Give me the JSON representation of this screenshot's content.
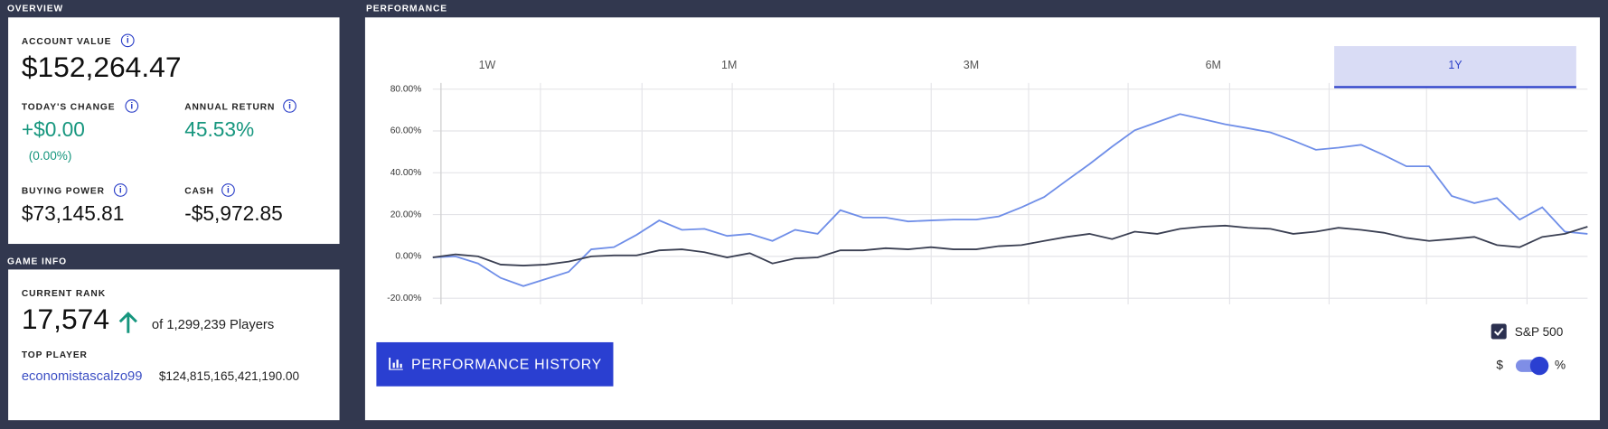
{
  "sections": {
    "overview": "OVERVIEW",
    "performance": "PERFORMANCE",
    "game_info": "GAME INFO"
  },
  "overview": {
    "account_value": {
      "label": "ACCOUNT VALUE",
      "value": "$152,264.47"
    },
    "todays_change": {
      "label": "TODAY'S CHANGE",
      "value": "+$0.00",
      "percent": "(0.00%)"
    },
    "annual_return": {
      "label": "ANNUAL RETURN",
      "value": "45.53%"
    },
    "buying_power": {
      "label": "BUYING POWER",
      "value": "$73,145.81"
    },
    "cash": {
      "label": "CASH",
      "value": "-$5,972.85"
    }
  },
  "game_info": {
    "current_rank": {
      "label": "CURRENT RANK",
      "value": "17,574",
      "of": "of 1,299,239 Players"
    },
    "top_player": {
      "label": "TOP PLAYER",
      "name": "economistascalzo99",
      "value": "$124,815,165,421,190.00"
    }
  },
  "performance": {
    "tabs": [
      "1W",
      "1M",
      "3M",
      "6M",
      "1Y"
    ],
    "selected_tab": "1Y",
    "button": "PERFORMANCE HISTORY",
    "toggle": {
      "left": "$",
      "right": "%"
    },
    "chart_data": {
      "type": "line",
      "ylim": [
        -20,
        80
      ],
      "yticks": [
        {
          "value": 80,
          "label": "80.00%"
        },
        {
          "value": 60,
          "label": "60.00%"
        },
        {
          "value": 40,
          "label": "40.00%"
        },
        {
          "value": 20,
          "label": "20.00%"
        },
        {
          "value": 0,
          "label": "0.00%"
        },
        {
          "value": -20,
          "label": "-20.00%"
        }
      ],
      "grid": true,
      "series": [
        {
          "color": "#6f8ee8",
          "values": [
            -0.5,
            0,
            -3.4,
            -10.3,
            -14.2,
            -10.8,
            -7.4,
            3.4,
            4.4,
            10.3,
            17.2,
            12.7,
            13.2,
            9.8,
            10.8,
            7.4,
            12.7,
            10.8,
            22.1,
            18.6,
            18.6,
            16.7,
            17.2,
            17.6,
            17.6,
            19.1,
            23.5,
            28.4,
            36.3,
            44.1,
            52.5,
            60.3,
            64.2,
            68.1,
            65.7,
            63.2,
            61.3,
            59.3,
            55.4,
            51,
            52,
            53.4,
            48.5,
            43.1,
            43.1,
            28.9,
            25.5,
            27.9,
            17.6,
            23.5,
            11.8,
            10.8
          ]
        },
        {
          "name": "S&P 500",
          "color": "#3a3f52",
          "checked": true,
          "values": [
            -0.5,
            1,
            0,
            -3.9,
            -4.4,
            -3.9,
            -2.5,
            0,
            0.5,
            0.5,
            2.9,
            3.4,
            2,
            -0.5,
            1.5,
            -3.4,
            -1,
            -0.5,
            2.9,
            2.9,
            3.9,
            3.4,
            4.4,
            3.4,
            3.4,
            4.9,
            5.4,
            7.4,
            9.3,
            10.8,
            8.3,
            11.8,
            10.8,
            13.2,
            14.2,
            14.7,
            13.7,
            13.2,
            10.8,
            11.8,
            13.7,
            12.7,
            11.3,
            8.8,
            7.4,
            8.3,
            9.3,
            5.4,
            4.4,
            9.3,
            10.8,
            14.2
          ]
        }
      ]
    }
  }
}
